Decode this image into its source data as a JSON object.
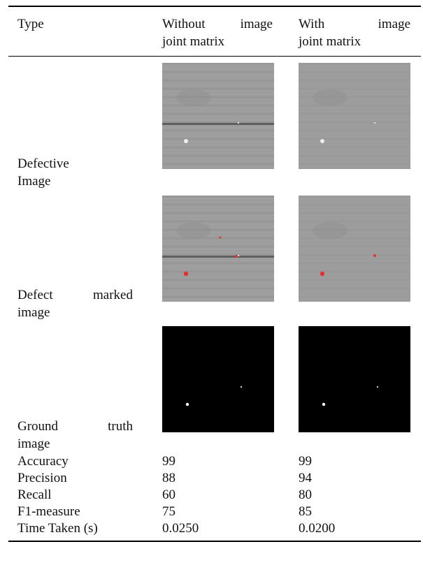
{
  "table": {
    "header": [
      [
        "Type"
      ],
      [
        "Without image",
        "joint matrix"
      ],
      [
        "With image",
        "joint matrix"
      ]
    ],
    "image_rows": [
      {
        "label": [
          "Defective",
          "Image"
        ]
      },
      {
        "label": [
          "Defect marked",
          "image"
        ]
      },
      {
        "label": [
          "Ground truth",
          "image"
        ]
      }
    ],
    "rows": [
      [
        "Accuracy",
        "99",
        "99"
      ],
      [
        "Precision",
        "88",
        "94"
      ],
      [
        "Recall",
        "60",
        "80"
      ],
      [
        "F1-measure",
        "75",
        "85"
      ],
      [
        "Time Taken (s)",
        "0.0250",
        "0.0200"
      ]
    ]
  }
}
